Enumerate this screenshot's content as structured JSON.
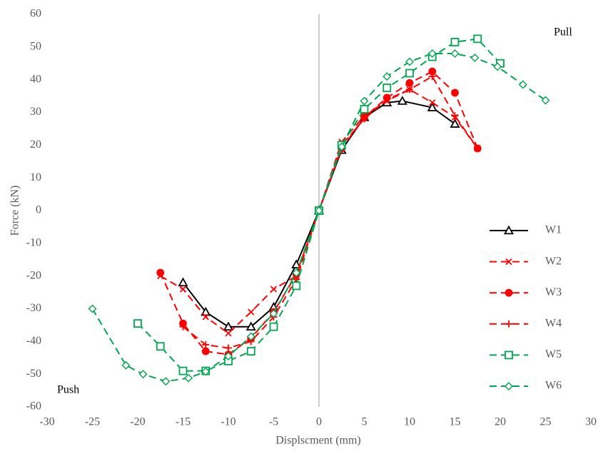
{
  "chart_data": {
    "type": "line",
    "xlabel": "Displscment (mm)",
    "ylabel": "Force (kN)",
    "annotations": [
      "Pull",
      "Push"
    ],
    "xlim": [
      -30,
      30
    ],
    "xticks": [
      -30,
      -25,
      -20,
      -15,
      -10,
      -5,
      0,
      5,
      10,
      15,
      20,
      25,
      30
    ],
    "ylim": [
      -60,
      60
    ],
    "yticks": [
      -60,
      -50,
      -40,
      -30,
      -20,
      -10,
      0,
      10,
      20,
      30,
      40,
      50,
      60
    ],
    "legend": "lower right",
    "series": [
      {
        "name": "W1",
        "color": "#000000",
        "marker": "triangle",
        "dash": "solid",
        "x": [
          -15,
          -12.5,
          -10,
          -7.5,
          -5,
          -2.5,
          0,
          2.5,
          5,
          7.5,
          9.2,
          12.5,
          15
        ],
        "values": [
          -22,
          -31,
          -35.5,
          -35.5,
          -29.5,
          -16.5,
          0,
          18.5,
          28.5,
          33,
          33.5,
          31.5,
          26.5
        ]
      },
      {
        "name": "W2",
        "color": "#ff0000",
        "marker": "x",
        "dash": "dashed",
        "x": [
          -17.5,
          -15,
          -12.5,
          -10,
          -7.5,
          -5,
          -2.5,
          0,
          2.5,
          5,
          7.5,
          10,
          12.5,
          15,
          17.5
        ],
        "values": [
          -20,
          -24,
          -32.5,
          -37.5,
          -31,
          -24,
          -20,
          0,
          21,
          29,
          33.5,
          37,
          33,
          28.5,
          19
        ]
      },
      {
        "name": "W3",
        "color": "#ff0000",
        "marker": "circle",
        "dash": "dashed",
        "x": [
          -17.5,
          -15,
          -12.5,
          -10,
          -7.5,
          -5,
          -2.5,
          0,
          2.5,
          5,
          7.5,
          10,
          12.5,
          15,
          17.5
        ],
        "values": [
          -19,
          -34.5,
          -43,
          -44,
          -39,
          -31,
          -19.5,
          0,
          19,
          28.5,
          34.5,
          39,
          42.5,
          36,
          19
        ]
      },
      {
        "name": "W4",
        "color": "#ff0000",
        "marker": "plus",
        "dash": "dashed",
        "x": [
          -15,
          -12.5,
          -10,
          -7.5,
          -5,
          -2.5,
          0,
          2.5,
          5,
          7.5,
          10,
          12.5,
          15,
          17.5
        ],
        "values": [
          -35.5,
          -41,
          -42,
          -40,
          -32.5,
          -21,
          0,
          20,
          28,
          34,
          37,
          41,
          29,
          19
        ]
      },
      {
        "name": "W5",
        "color": "#00a651",
        "marker": "square",
        "dash": "dashed",
        "x": [
          -20,
          -17.5,
          -15,
          -12.5,
          -10,
          -7.5,
          -5,
          -2.5,
          0,
          2.5,
          5,
          7.5,
          10,
          12.5,
          15,
          17.5,
          20
        ],
        "values": [
          -34.5,
          -41.5,
          -49,
          -49,
          -46,
          -43,
          -35.5,
          -23,
          0,
          20,
          31,
          37.5,
          42,
          47,
          51.5,
          52.5,
          45
        ]
      },
      {
        "name": "W6",
        "color": "#00a651",
        "marker": "diamond",
        "dash": "dashed",
        "x": [
          -25,
          -21.3,
          -19.4,
          -16.9,
          -14.4,
          -12.5,
          -10,
          -7.5,
          -5,
          -2.5,
          0,
          2.5,
          5,
          7.5,
          10,
          12.5,
          15,
          17.2,
          19.7,
          22.5,
          25
        ],
        "values": [
          -30,
          -47.3,
          -50,
          -52.2,
          -51.2,
          -49.2,
          -44.5,
          -38.5,
          -31.5,
          -19,
          0,
          19.5,
          33.5,
          41,
          45.5,
          48,
          48,
          46.7,
          44,
          38.5,
          33.7
        ]
      }
    ]
  }
}
